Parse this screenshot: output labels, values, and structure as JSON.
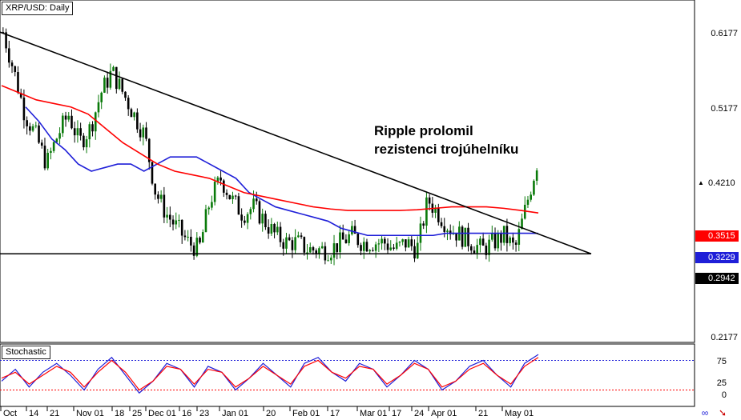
{
  "header": {
    "symbol_title": "XRP/USD: Daily"
  },
  "annotation": {
    "line1": "Ripple prolomil",
    "line2": "rezistenci trojúhelníku"
  },
  "indicator": {
    "name": "Stochastic",
    "levels": [
      "75",
      "25",
      "0"
    ]
  },
  "price_axis": {
    "ticks": [
      "0.6177",
      "0.5177",
      "0.2177"
    ]
  },
  "price_tags": [
    {
      "value": "0.4210",
      "bg": "#ffffff",
      "fg": "#000000",
      "marker": "▲"
    },
    {
      "value": "0.3515",
      "bg": "#ff0000",
      "fg": "#ffffff",
      "marker": ""
    },
    {
      "value": "0.3229",
      "bg": "#1f1fd8",
      "fg": "#ffffff",
      "marker": ""
    },
    {
      "value": "0.2942",
      "bg": "#000000",
      "fg": "#ffffff",
      "marker": ""
    }
  ],
  "x_axis_labels": [
    "Oct",
    "14",
    "21",
    "Nov 01",
    "18",
    "25",
    "Dec 01",
    "16",
    "23",
    "Jan 01",
    "20",
    "Feb 01",
    "17",
    "Mar 01",
    "17",
    "24",
    "Apr 01",
    "21",
    "May 01"
  ],
  "colors": {
    "candle_up": "#0a7a0a",
    "candle_down": "#000000",
    "ma_fast": "#1f1fd8",
    "ma_slow": "#ff0000",
    "trendline": "#000000",
    "stoch_k": "#1f1fd8",
    "stoch_d": "#ff0000",
    "level_upper": "#1f1fd8",
    "level_lower": "#ff0000"
  },
  "icons": [
    "link-icon",
    "arrow-icon"
  ],
  "chart_data": {
    "type": "candlestick",
    "ylim": [
      0.17,
      0.65
    ],
    "series": [
      {
        "name": "XRP/USD",
        "values": [
          0.605,
          0.55,
          0.49,
          0.46,
          0.42,
          0.46,
          0.49,
          0.45,
          0.47,
          0.52,
          0.55,
          0.52,
          0.49,
          0.46,
          0.38,
          0.35,
          0.33,
          0.31,
          0.3,
          0.37,
          0.4,
          0.37,
          0.35,
          0.36,
          0.34,
          0.32,
          0.31,
          0.31,
          0.3,
          0.3,
          0.3,
          0.31,
          0.32,
          0.31,
          0.31,
          0.31,
          0.3,
          0.31,
          0.3,
          0.37,
          0.35,
          0.33,
          0.32,
          0.31,
          0.3,
          0.31,
          0.32,
          0.3,
          0.36,
          0.421
        ]
      }
    ],
    "moving_averages": [
      {
        "values": [
          0.5,
          0.48,
          0.455,
          0.44,
          0.42,
          0.41,
          0.415,
          0.42,
          0.42,
          0.41,
          0.42,
          0.43,
          0.43,
          0.43,
          0.42,
          0.41,
          0.4,
          0.38,
          0.37,
          0.36,
          0.355,
          0.35,
          0.345,
          0.34,
          0.33,
          0.325,
          0.32,
          0.32,
          0.32,
          0.32,
          0.32,
          0.32,
          0.323,
          0.323,
          0.323,
          0.323,
          0.323,
          0.323,
          0.323,
          0.3229
        ]
      },
      {
        "values": [
          0.53,
          0.52,
          0.51,
          0.505,
          0.5,
          0.49,
          0.47,
          0.45,
          0.435,
          0.42,
          0.41,
          0.405,
          0.4,
          0.39,
          0.38,
          0.375,
          0.37,
          0.365,
          0.36,
          0.357,
          0.355,
          0.355,
          0.355,
          0.355,
          0.356,
          0.358,
          0.36,
          0.36,
          0.36,
          0.358,
          0.355,
          0.3515
        ]
      }
    ],
    "trendlines": [
      {
        "from": [
          0,
          0.605
        ],
        "to": [
          1,
          0.2942
        ],
        "label": "descending resistance"
      },
      {
        "from": [
          0,
          0.2942
        ],
        "to": [
          1,
          0.2942
        ],
        "label": "horizontal support"
      }
    ],
    "stochastic": {
      "k": [
        40,
        60,
        30,
        55,
        70,
        50,
        25,
        60,
        80,
        50,
        20,
        40,
        70,
        60,
        30,
        65,
        55,
        25,
        45,
        70,
        50,
        30,
        70,
        80,
        55,
        40,
        70,
        60,
        30,
        50,
        75,
        60,
        25,
        40,
        65,
        75,
        50,
        30,
        70,
        85
      ],
      "d": [
        45,
        55,
        35,
        50,
        65,
        55,
        30,
        55,
        75,
        55,
        25,
        40,
        65,
        60,
        35,
        60,
        55,
        30,
        45,
        65,
        50,
        35,
        65,
        75,
        55,
        45,
        65,
        60,
        35,
        50,
        70,
        60,
        30,
        40,
        60,
        70,
        50,
        35,
        65,
        80
      ],
      "levels": [
        75,
        25
      ]
    }
  }
}
